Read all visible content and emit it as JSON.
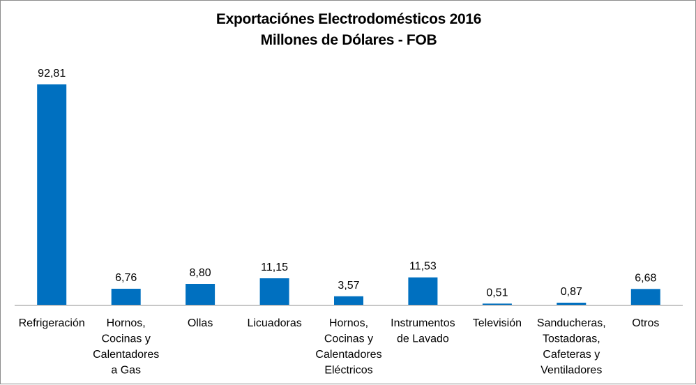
{
  "chart_data": {
    "type": "bar",
    "title": "Exportaciónes Electrodomésticos 2016",
    "subtitle": "Millones de Dólares - FOB",
    "xlabel": "",
    "ylabel": "",
    "ylim": [
      0,
      100
    ],
    "grid": false,
    "legend": "none",
    "bar_color": "#0070c0",
    "categories": [
      [
        "Refrigeración"
      ],
      [
        "Hornos,",
        "Cocinas y",
        "Calentadores",
        "a Gas"
      ],
      [
        "Ollas"
      ],
      [
        "Licuadoras"
      ],
      [
        "Hornos,",
        "Cocinas y",
        "Calentadores",
        "Eléctricos"
      ],
      [
        "Instrumentos",
        "de Lavado"
      ],
      [
        "Televisión"
      ],
      [
        "Sanducheras,",
        "Tostadoras,",
        "Cafeteras y",
        "Ventiladores"
      ],
      [
        "Otros"
      ]
    ],
    "values": [
      92.81,
      6.76,
      8.8,
      11.15,
      3.57,
      11.53,
      0.51,
      0.87,
      6.68
    ],
    "value_labels": [
      "92,81",
      "6,76",
      "8,80",
      "11,15",
      "3,57",
      "11,53",
      "0,51",
      "0,87",
      "6,68"
    ]
  }
}
